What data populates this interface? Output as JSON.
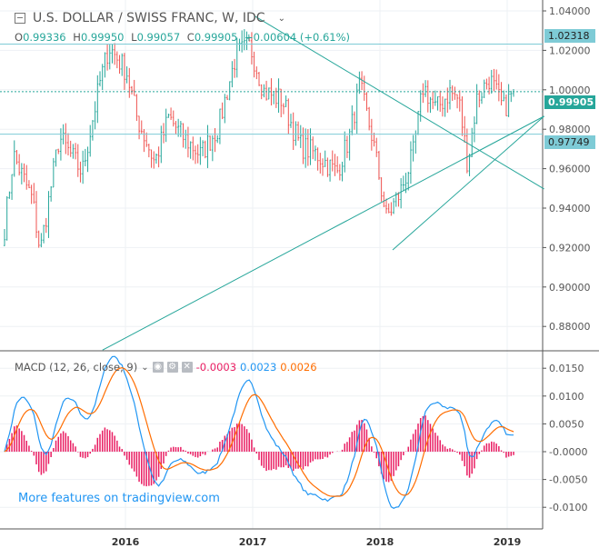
{
  "header": {
    "title": "U.S. DOLLAR / SWISS FRANC, W, IDC",
    "open_label": "O",
    "open": "0.99336",
    "high_label": "H",
    "high": "0.99950",
    "low_label": "L",
    "low": "0.99057",
    "close_label": "C",
    "close": "0.99905",
    "change": "+0.00604 (+0.61%)"
  },
  "macd_legend": {
    "title": "MACD (12, 26, close, 9)",
    "hist": "-0.0003",
    "macd": "0.0023",
    "signal": "0.0026"
  },
  "promo": "More features on tradingview.com",
  "colors": {
    "up": "#26a69a",
    "down": "#ef5350",
    "macd": "#2196f3",
    "signal": "#ff6d00",
    "hist": "#e91e63",
    "hline": "#7ecbd6",
    "trend": "#26a69a"
  },
  "price_tags": {
    "last": "0.99905",
    "upper": "1.02318",
    "lower": "0.97749"
  },
  "chart_data": [
    {
      "type": "candlestick",
      "title": "U.S. DOLLAR / SWISS FRANC, W, IDC",
      "ylim": [
        0.87,
        1.045
      ],
      "yticks": [
        "1.04000",
        "1.02000",
        "1.00000",
        "0.98000",
        "0.96000",
        "0.94000",
        "0.92000",
        "0.90000",
        "0.88000"
      ],
      "xticks": [
        "2016",
        "2017",
        "2018",
        "2019"
      ],
      "close_path": [
        [
          2015.05,
          0.93
        ],
        [
          2015.12,
          0.967
        ],
        [
          2015.27,
          0.944
        ],
        [
          2015.33,
          0.918
        ],
        [
          2015.48,
          0.976
        ],
        [
          2015.66,
          0.958
        ],
        [
          2015.8,
          1.004
        ],
        [
          2015.87,
          1.022
        ],
        [
          2016.01,
          1.009
        ],
        [
          2016.09,
          0.986
        ],
        [
          2016.23,
          0.963
        ],
        [
          2016.34,
          0.986
        ],
        [
          2016.44,
          0.977
        ],
        [
          2016.59,
          0.967
        ],
        [
          2016.73,
          0.981
        ],
        [
          2016.87,
          1.018
        ],
        [
          2016.98,
          1.022
        ],
        [
          2017.09,
          0.999
        ],
        [
          2017.23,
          0.995
        ],
        [
          2017.37,
          0.972
        ],
        [
          2017.51,
          0.967
        ],
        [
          2017.66,
          0.958
        ],
        [
          2017.76,
          0.976
        ],
        [
          2017.84,
          1.002
        ],
        [
          2017.94,
          0.976
        ],
        [
          2018.05,
          0.935
        ],
        [
          2018.16,
          0.948
        ],
        [
          2018.26,
          0.967
        ],
        [
          2018.34,
          1.002
        ],
        [
          2018.44,
          0.99
        ],
        [
          2018.55,
          0.999
        ],
        [
          2018.62,
          0.995
        ],
        [
          2018.69,
          0.962
        ],
        [
          2018.76,
          0.995
        ],
        [
          2018.86,
          1.006
        ],
        [
          2018.97,
          0.99
        ],
        [
          2019.05,
          0.99905
        ]
      ],
      "hlines": [
        1.02318,
        0.99905,
        0.97749
      ],
      "trendlines": [
        [
          [
            2015.82,
            0.868
          ],
          [
            2019.29,
            0.9866
          ]
        ],
        [
          [
            2017.02,
            1.0372
          ],
          [
            2019.29,
            0.9497
          ]
        ],
        [
          [
            2018.1,
            0.9188
          ],
          [
            2019.29,
            0.9866
          ]
        ]
      ]
    },
    {
      "type": "line+bar",
      "title": "MACD (12, 26, close, 9)",
      "ylim": [
        -0.0125,
        0.0185
      ],
      "yticks": [
        "0.0150",
        "0.0100",
        "0.0050",
        "-0.0000",
        "-0.0050",
        "-0.0100"
      ],
      "series": [
        {
          "name": "MACD",
          "color": "#2196f3"
        },
        {
          "name": "Signal",
          "color": "#ff6d00"
        },
        {
          "name": "Histogram",
          "color": "#e91e63"
        }
      ]
    }
  ]
}
